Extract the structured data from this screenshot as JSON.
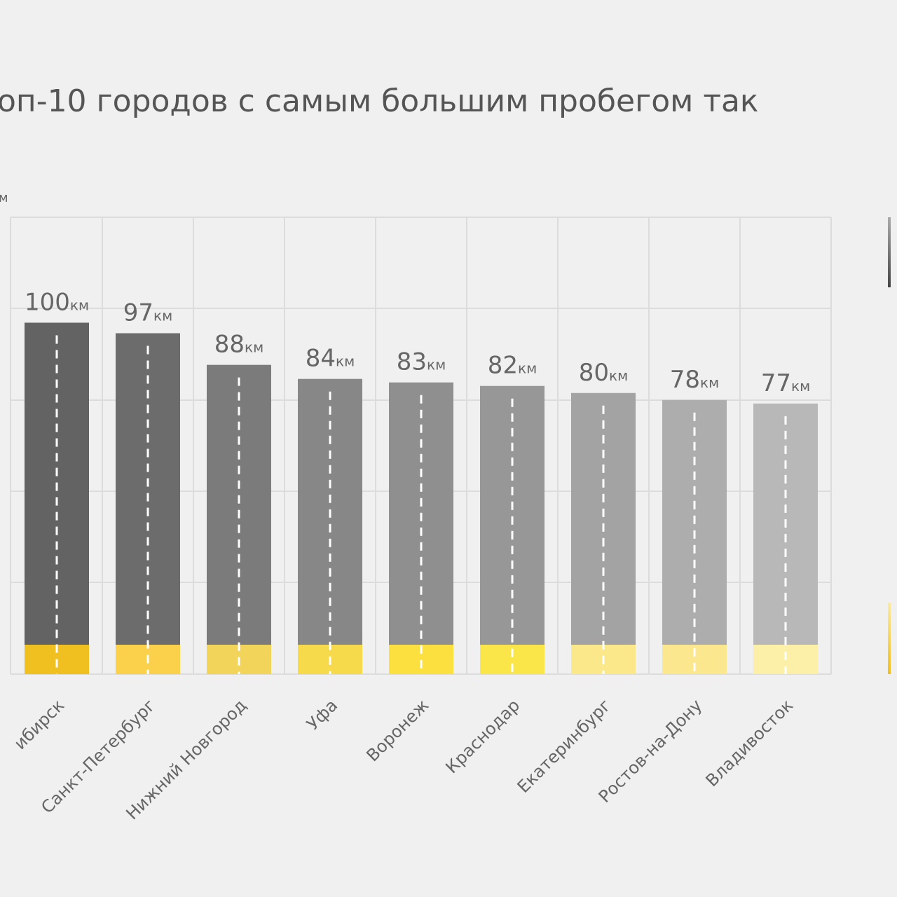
{
  "chart_data": {
    "type": "bar",
    "title": "оп-10 городов с самым большим пробегом так",
    "axis_label": "м",
    "unit": "км",
    "categories": [
      "ибирск",
      "Санкт-Петербург",
      "Нижний Новгород",
      "Уфа",
      "Воронеж",
      "Краснодар",
      "Екатеринбург",
      "Ростов-на-Дону",
      "Владивосток"
    ],
    "values": [
      100,
      97,
      88,
      84,
      83,
      82,
      80,
      78,
      77
    ],
    "colors": [
      "#636363",
      "#6c6c6c",
      "#7b7b7b",
      "#878787",
      "#8f8f8f",
      "#979797",
      "#a3a3a3",
      "#adadad",
      "#b8b8b8"
    ],
    "accent_colors": [
      "#f0c020",
      "#fbd04a",
      "#f2d45a",
      "#f7da4c",
      "#fbe040",
      "#fbe64a",
      "#fbe88a",
      "#fbe78e",
      "#fcefa8"
    ],
    "ylim": [
      0,
      130
    ]
  }
}
